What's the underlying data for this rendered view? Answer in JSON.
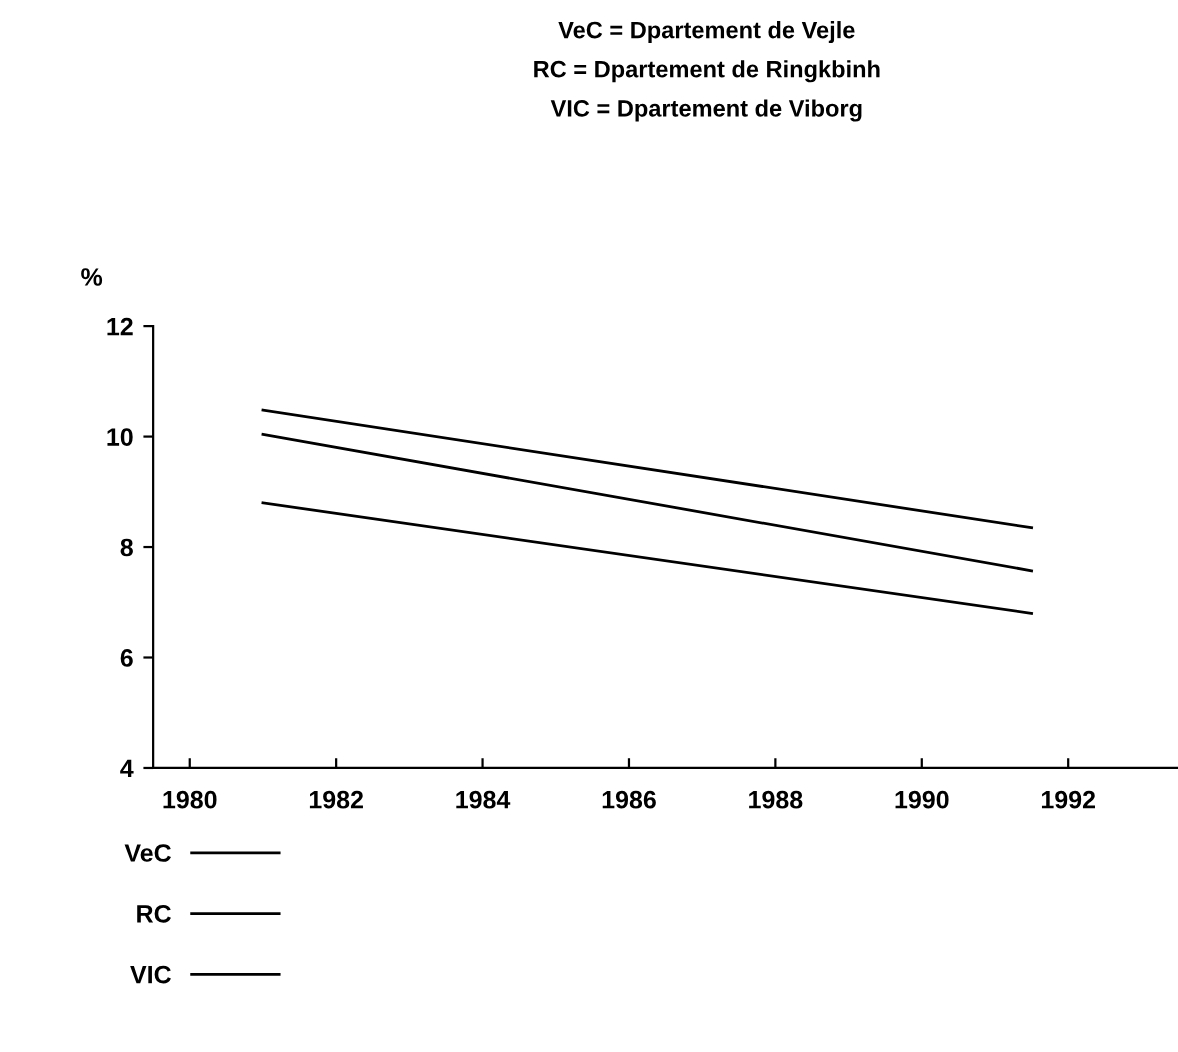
{
  "chart_data": {
    "type": "line",
    "title": "VeC = Dpartement de Vejle\nRC = Dpartement de Ringkbinh\nVIC = Dpartement de Viborg",
    "ylabel": "%",
    "x": [
      1981.0,
      1991.5
    ],
    "series": [
      {
        "name": "VeC",
        "color": "#000000",
        "values": [
          10.48,
          8.35
        ]
      },
      {
        "name": "RC",
        "color": "#000000",
        "values": [
          10.04,
          7.57
        ]
      },
      {
        "name": "VIC",
        "color": "#000000",
        "values": [
          8.8,
          6.8
        ]
      }
    ],
    "xlim": [
      1979.5,
      1993.5
    ],
    "xticks": [
      1980,
      1982,
      1984,
      1986,
      1988,
      1990,
      1992
    ],
    "ylim": [
      4,
      12
    ],
    "yticks": [
      4,
      6,
      8,
      10,
      12
    ],
    "grid": false,
    "legend": "bottom left",
    "marker": "none",
    "line_style": "solid"
  }
}
